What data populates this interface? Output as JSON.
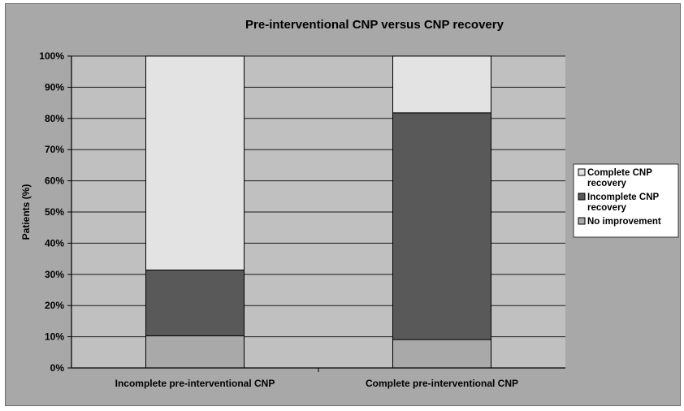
{
  "chart_data": {
    "type": "bar",
    "stacked": true,
    "title": "Pre-interventional CNP versus CNP recovery",
    "ylabel": "Patients (%)",
    "xlabel": "",
    "ylim": [
      0,
      100
    ],
    "yticks": [
      "0%",
      "10%",
      "20%",
      "30%",
      "40%",
      "50%",
      "60%",
      "70%",
      "80%",
      "90%",
      "100%"
    ],
    "categories": [
      "Incomplete pre-interventional CNP",
      "Complete pre-interventional CNP"
    ],
    "series": [
      {
        "name": "No improvement",
        "values": [
          10.3,
          9.1
        ],
        "color": "#a9a9a9"
      },
      {
        "name": "Incomplete CNP recovery",
        "values": [
          21.1,
          72.7
        ],
        "color": "#595959"
      },
      {
        "name": "Complete CNP recovery",
        "values": [
          68.6,
          18.2
        ],
        "color": "#e3e3e3"
      }
    ],
    "legend": {
      "position": "right",
      "entries": [
        {
          "lines": [
            "Complete CNP",
            "recovery"
          ],
          "color": "#e3e3e3"
        },
        {
          "lines": [
            "Incomplete CNP",
            "recovery"
          ],
          "color": "#595959"
        },
        {
          "lines": [
            "No improvement"
          ],
          "color": "#a9a9a9"
        }
      ]
    },
    "grid": true,
    "plot_background": "#c0c0c0",
    "frame_background": "#a8a8a8"
  }
}
